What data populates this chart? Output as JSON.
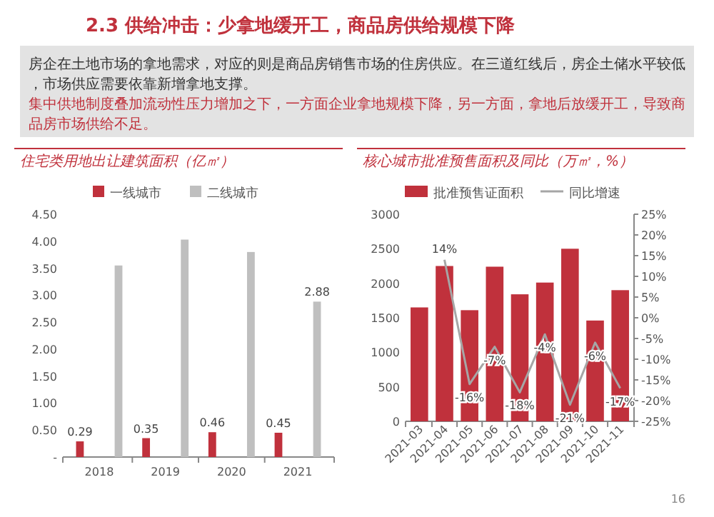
{
  "chart_data": [
    {
      "type": "other",
      "title": "2.3 供给冲击：少拿地缓开工，商品房供给规模下降",
      "annotations": [
        "房企在土地市场的拿地需求，对应的则是商品房销售市场的住房供应。在三道红线后，房企土储水平较低，市场供应需要依靠新增拿地支撑。",
        "集中供地制度叠加流动性压力增加之下，一方面企业拿地规模下降，另一方面，拿地后放缓开工，导致商品房市场供给不足。"
      ]
    },
    {
      "type": "bar",
      "title": "住宅类用地出让建筑面积（亿㎡）",
      "categories": [
        "2018",
        "2019",
        "2020",
        "2021"
      ],
      "legend": "top",
      "ylim": [
        0,
        4.5
      ],
      "yticks": [
        {
          "value": 0,
          "label": "-"
        },
        {
          "value": 0.5,
          "label": "0.50"
        },
        {
          "value": 1,
          "label": "1.00"
        },
        {
          "value": 1.5,
          "label": "1.50"
        },
        {
          "value": 2,
          "label": "2.00"
        },
        {
          "value": 2.5,
          "label": "2.50"
        },
        {
          "value": 3,
          "label": "3.00"
        },
        {
          "value": 3.5,
          "label": "3.50"
        },
        {
          "value": 4,
          "label": "4.00"
        },
        {
          "value": 4.5,
          "label": "4.50"
        }
      ],
      "series": [
        {
          "name": "一线城市",
          "color": "#c0313c",
          "values": [
            0.29,
            0.35,
            0.46,
            0.45
          ],
          "value_labels": [
            "0.29",
            "0.35",
            "0.46",
            "0.45"
          ]
        },
        {
          "name": "二线城市",
          "color": "#bfbfbf",
          "values": [
            3.55,
            4.03,
            3.8,
            2.88
          ],
          "value_labels": [
            null,
            null,
            null,
            "2.88"
          ]
        }
      ]
    },
    {
      "type": "bar",
      "title": "核心城市批准预售面积及同比（万㎡，%）",
      "categories": [
        "2021-03",
        "2021-04",
        "2021-05",
        "2021-06",
        "2021-07",
        "2021-08",
        "2021-09",
        "2021-10",
        "2021-11"
      ],
      "legend": "top",
      "ylim": [
        0,
        3000
      ],
      "yticks": [
        0,
        500,
        1000,
        1500,
        2000,
        2500,
        3000
      ],
      "y2lim": [
        -25,
        25
      ],
      "y2ticks": [
        {
          "value": -25,
          "label": "-25%"
        },
        {
          "value": -20,
          "label": "-20%"
        },
        {
          "value": -15,
          "label": "-15%"
        },
        {
          "value": -10,
          "label": "-10%"
        },
        {
          "value": -5,
          "label": "-5%"
        },
        {
          "value": 0,
          "label": "0%"
        },
        {
          "value": 5,
          "label": "5%"
        },
        {
          "value": 10,
          "label": "10%"
        },
        {
          "value": 15,
          "label": "15%"
        },
        {
          "value": 20,
          "label": "20%"
        },
        {
          "value": 25,
          "label": "25%"
        }
      ],
      "annotations": [
        "16"
      ],
      "series": [
        {
          "name": "批准预售证面积",
          "color": "#c0313c",
          "values": [
            1650,
            2250,
            1610,
            2240,
            1840,
            2010,
            2500,
            1460,
            1900
          ]
        },
        {
          "name": "同比增速",
          "type": "line",
          "axis": "y2",
          "color": "#a6a6a6",
          "values": [
            null,
            14,
            -16,
            -7,
            -18,
            -4,
            -21,
            -6,
            -17
          ],
          "value_labels": [
            null,
            "14%",
            "-16%",
            "-7%",
            "-18%",
            "-4%",
            "-21%",
            "-6%",
            "-17%"
          ]
        }
      ]
    }
  ]
}
